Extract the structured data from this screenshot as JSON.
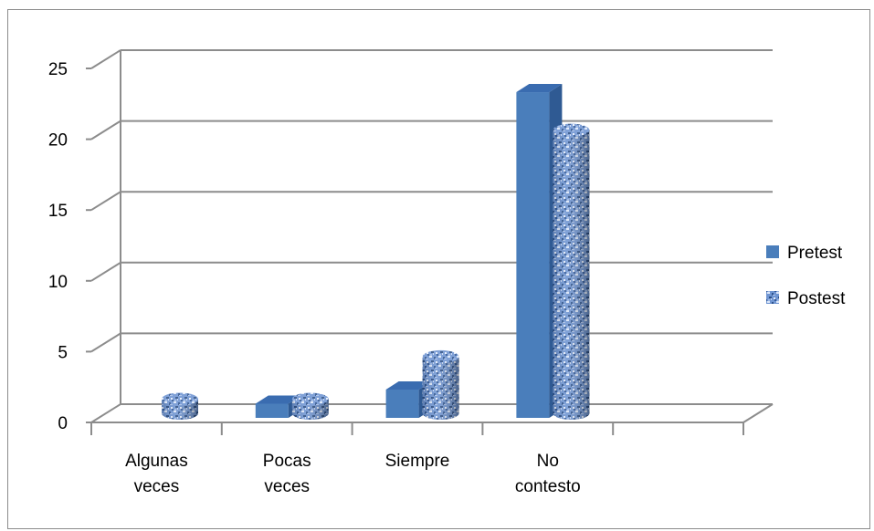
{
  "chart_data": {
    "type": "bar",
    "style": "3d-clustered-column",
    "categories": [
      [
        "Algunas",
        "veces"
      ],
      [
        "Pocas",
        "veces"
      ],
      [
        "Siempre"
      ],
      [
        "No",
        "contesto"
      ],
      [
        ""
      ]
    ],
    "series": [
      {
        "name": "Pretest",
        "shape": "box",
        "color": "#4a7ebb",
        "values": [
          0,
          1,
          2,
          23,
          0
        ]
      },
      {
        "name": "Postest",
        "shape": "cylinder",
        "color": "#6e93cf",
        "texture": "blue-mottled",
        "values": [
          1,
          1,
          4,
          20,
          0
        ]
      }
    ],
    "yticks": [
      "0",
      "5",
      "10",
      "15",
      "20",
      "25"
    ],
    "ylim": [
      0,
      25
    ],
    "grid": true,
    "legend_position": "right",
    "title": "",
    "xlabel": "",
    "ylabel": ""
  }
}
